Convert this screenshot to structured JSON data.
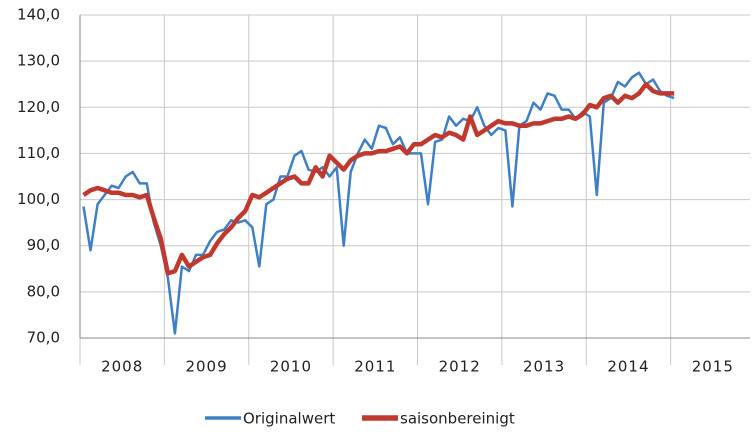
{
  "chart_data": {
    "type": "line",
    "x": [
      2008.042,
      2008.125,
      2008.208,
      2008.292,
      2008.375,
      2008.458,
      2008.542,
      2008.625,
      2008.708,
      2008.792,
      2008.875,
      2008.958,
      2009.042,
      2009.125,
      2009.208,
      2009.292,
      2009.375,
      2009.458,
      2009.542,
      2009.625,
      2009.708,
      2009.792,
      2009.875,
      2009.958,
      2010.042,
      2010.125,
      2010.208,
      2010.292,
      2010.375,
      2010.458,
      2010.542,
      2010.625,
      2010.708,
      2010.792,
      2010.875,
      2010.958,
      2011.042,
      2011.125,
      2011.208,
      2011.292,
      2011.375,
      2011.458,
      2011.542,
      2011.625,
      2011.708,
      2011.792,
      2011.875,
      2011.958,
      2012.042,
      2012.125,
      2012.208,
      2012.292,
      2012.375,
      2012.458,
      2012.542,
      2012.625,
      2012.708,
      2012.792,
      2012.875,
      2012.958,
      2013.042,
      2013.125,
      2013.208,
      2013.292,
      2013.375,
      2013.458,
      2013.542,
      2013.625,
      2013.708,
      2013.792,
      2013.875,
      2013.958,
      2014.042,
      2014.125,
      2014.208,
      2014.292,
      2014.375,
      2014.458,
      2014.542,
      2014.625,
      2014.708,
      2014.792,
      2014.875,
      2014.958,
      2015.042
    ],
    "series": [
      {
        "name": "Originalwert",
        "color": "#3f7fc6",
        "width": 2.5,
        "values": [
          98.5,
          89,
          99,
          101,
          103,
          102.5,
          105,
          106,
          103.5,
          103.5,
          95,
          90,
          83,
          71,
          85.5,
          84.5,
          88,
          88,
          91,
          93,
          93.5,
          95.5,
          95,
          95.5,
          94,
          85.5,
          99,
          100,
          105,
          105,
          109.5,
          110.5,
          106.5,
          106,
          107,
          105,
          107,
          90,
          106,
          110,
          113,
          111,
          116,
          115.5,
          112,
          113.5,
          110,
          110,
          110,
          99,
          112.5,
          113,
          118,
          116,
          117.5,
          117,
          120,
          116,
          114,
          115.5,
          115,
          98.5,
          116,
          117,
          121,
          119.5,
          123,
          122.5,
          119.5,
          119.5,
          117.5,
          119,
          118,
          101,
          121,
          122,
          125.5,
          124.5,
          126.5,
          127.5,
          125,
          126,
          123.5,
          122.5,
          122
        ]
      },
      {
        "name": "saisonbereinigt",
        "color": "#c0392f",
        "width": 4.5,
        "values": [
          101,
          102,
          102.5,
          102,
          101.5,
          101.5,
          101,
          101,
          100.5,
          101,
          96,
          91.5,
          84,
          84.5,
          88,
          85.5,
          86.5,
          87.5,
          88,
          90.5,
          92.5,
          94,
          96,
          97.5,
          101,
          100.5,
          101.5,
          102.5,
          103.5,
          104.5,
          105,
          103.5,
          103.5,
          107,
          105,
          109.5,
          108,
          106.5,
          108.5,
          109.5,
          110,
          110,
          110.5,
          110.5,
          111,
          111.5,
          110,
          112,
          112,
          113,
          114,
          113.5,
          114.5,
          114,
          113,
          118,
          114,
          115,
          116,
          117,
          116.5,
          116.5,
          116,
          116,
          116.5,
          116.5,
          117,
          117.5,
          117.5,
          118,
          117.5,
          118.5,
          120.5,
          120,
          122,
          122.5,
          121,
          122.5,
          122,
          123,
          125,
          123.5,
          123,
          123,
          123
        ]
      }
    ],
    "xlim": [
      2008,
      2016
    ],
    "xticks": [
      {
        "value": 2008.5,
        "label": "2008"
      },
      {
        "value": 2009.5,
        "label": "2009"
      },
      {
        "value": 2010.5,
        "label": "2010"
      },
      {
        "value": 2011.5,
        "label": "2011"
      },
      {
        "value": 2012.5,
        "label": "2012"
      },
      {
        "value": 2013.5,
        "label": "2013"
      },
      {
        "value": 2014.5,
        "label": "2014"
      },
      {
        "value": 2015.5,
        "label": "2015"
      }
    ],
    "ylim": [
      70,
      140
    ],
    "yticks": [
      {
        "value": 70,
        "label": "70,0"
      },
      {
        "value": 80,
        "label": "80,0"
      },
      {
        "value": 90,
        "label": "90,0"
      },
      {
        "value": 100,
        "label": "100,0"
      },
      {
        "value": 110,
        "label": "110,0"
      },
      {
        "value": 120,
        "label": "120,0"
      },
      {
        "value": 130,
        "label": "130,0"
      },
      {
        "value": 140,
        "label": "140,0"
      }
    ],
    "grid": true,
    "legend": "bottom"
  }
}
